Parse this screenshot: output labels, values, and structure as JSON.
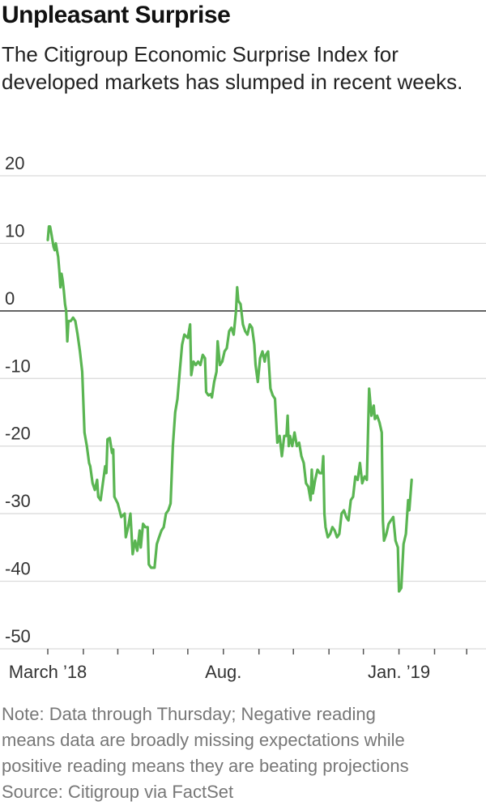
{
  "title": "Unpleasant Surprise",
  "subtitle": "The Citigroup Economic Surprise Index for developed markets has slumped in recent weeks.",
  "notes": [
    "Note: Data through Thursday; Negative reading",
    "means data are broadly missing expectations while",
    "positive reading means they are beating projections"
  ],
  "source": "Source: Citigroup via FactSet",
  "colors": {
    "line": "#5ab552",
    "grid": "#d9d9d9",
    "zero": "#333333",
    "axis_text": "#333333"
  },
  "chart_data": {
    "type": "line",
    "title": "Unpleasant Surprise",
    "ylim": [
      -50,
      20
    ],
    "yticks": [
      20,
      10,
      0,
      -10,
      -20,
      -30,
      -40,
      -50
    ],
    "ytick_labels": [
      "20",
      "10",
      "0",
      "-10",
      "-20",
      "-30",
      "-40",
      "-50"
    ],
    "grid": true,
    "zero_line": true,
    "x_axis": {
      "start": "2018-03-01",
      "end": "2019-03-15",
      "month_ticks": [
        "2018-03-01",
        "2018-04-01",
        "2018-05-01",
        "2018-06-01",
        "2018-07-01",
        "2018-08-01",
        "2018-09-01",
        "2018-10-01",
        "2018-11-01",
        "2018-12-01",
        "2019-01-01",
        "2019-02-01",
        "2019-03-01"
      ],
      "labels": [
        {
          "date": "2018-03-01",
          "text": "March ’18"
        },
        {
          "date": "2018-08-01",
          "text": "Aug."
        },
        {
          "date": "2019-01-01",
          "text": "Jan. ’19"
        }
      ]
    },
    "series": [
      {
        "points": [
          [
            "2018-03-01",
            10.5
          ],
          [
            "2018-03-02",
            12.5
          ],
          [
            "2018-03-03",
            12.5
          ],
          [
            "2018-03-04",
            11.5
          ],
          [
            "2018-03-05",
            10.5
          ],
          [
            "2018-03-06",
            9.5
          ],
          [
            "2018-03-07",
            9.0
          ],
          [
            "2018-03-08",
            10.0
          ],
          [
            "2018-03-09",
            9.0
          ],
          [
            "2018-03-10",
            8.0
          ],
          [
            "2018-03-11",
            6.0
          ],
          [
            "2018-03-12",
            3.5
          ],
          [
            "2018-03-13",
            5.5
          ],
          [
            "2018-03-14",
            4.5
          ],
          [
            "2018-03-15",
            3.0
          ],
          [
            "2018-03-16",
            1.0
          ],
          [
            "2018-03-17",
            0.0
          ],
          [
            "2018-03-18",
            -4.5
          ],
          [
            "2018-03-19",
            -1.5
          ],
          [
            "2018-03-21",
            -1.5
          ],
          [
            "2018-03-23",
            -1.0
          ],
          [
            "2018-03-25",
            -1.5
          ],
          [
            "2018-03-27",
            -3.5
          ],
          [
            "2018-03-29",
            -6.0
          ],
          [
            "2018-03-31",
            -9.0
          ],
          [
            "2018-04-02",
            -18.0
          ],
          [
            "2018-04-04",
            -20.0
          ],
          [
            "2018-04-06",
            -22.5
          ],
          [
            "2018-04-07",
            -23.0
          ],
          [
            "2018-04-09",
            -25.5
          ],
          [
            "2018-04-11",
            -26.5
          ],
          [
            "2018-04-13",
            -25.0
          ],
          [
            "2018-04-14",
            -27.5
          ],
          [
            "2018-04-16",
            -28.0
          ],
          [
            "2018-04-18",
            -25.5
          ],
          [
            "2018-04-20",
            -23.0
          ],
          [
            "2018-04-21",
            -24.0
          ],
          [
            "2018-04-22",
            -19.0
          ],
          [
            "2018-04-24",
            -18.8
          ],
          [
            "2018-04-26",
            -21.0
          ],
          [
            "2018-04-27",
            -20.5
          ],
          [
            "2018-04-28",
            -27.5
          ],
          [
            "2018-05-01",
            -28.5
          ],
          [
            "2018-05-04",
            -30.5
          ],
          [
            "2018-05-07",
            -30.0
          ],
          [
            "2018-05-08",
            -33.5
          ],
          [
            "2018-05-10",
            -32.0
          ],
          [
            "2018-05-12",
            -30.0
          ],
          [
            "2018-05-14",
            -36.0
          ],
          [
            "2018-05-16",
            -34.0
          ],
          [
            "2018-05-18",
            -35.5
          ],
          [
            "2018-05-20",
            -32.5
          ],
          [
            "2018-05-21",
            -35.0
          ],
          [
            "2018-05-23",
            -31.5
          ],
          [
            "2018-05-25",
            -32.0
          ],
          [
            "2018-05-27",
            -32.0
          ],
          [
            "2018-05-28",
            -37.5
          ],
          [
            "2018-05-30",
            -38.0
          ],
          [
            "2018-06-02",
            -38.0
          ],
          [
            "2018-06-04",
            -34.5
          ],
          [
            "2018-06-06",
            -33.5
          ],
          [
            "2018-06-08",
            -32.5
          ],
          [
            "2018-06-10",
            -32.0
          ],
          [
            "2018-06-12",
            -30.0
          ],
          [
            "2018-06-14",
            -29.5
          ],
          [
            "2018-06-16",
            -28.5
          ],
          [
            "2018-06-18",
            -20.0
          ],
          [
            "2018-06-20",
            -15.0
          ],
          [
            "2018-06-22",
            -13.0
          ],
          [
            "2018-06-24",
            -9.0
          ],
          [
            "2018-06-26",
            -5.0
          ],
          [
            "2018-06-28",
            -3.5
          ],
          [
            "2018-07-01",
            -4.0
          ],
          [
            "2018-07-03",
            -2.0
          ],
          [
            "2018-07-04",
            -9.5
          ],
          [
            "2018-07-06",
            -7.5
          ],
          [
            "2018-07-08",
            -8.0
          ],
          [
            "2018-07-10",
            -7.5
          ],
          [
            "2018-07-12",
            -8.0
          ],
          [
            "2018-07-14",
            -6.5
          ],
          [
            "2018-07-16",
            -7.0
          ],
          [
            "2018-07-17",
            -12.0
          ],
          [
            "2018-07-19",
            -12.5
          ],
          [
            "2018-07-21",
            -12.3
          ],
          [
            "2018-07-22",
            -12.8
          ],
          [
            "2018-07-24",
            -10.5
          ],
          [
            "2018-07-26",
            -9.0
          ],
          [
            "2018-07-27",
            -4.5
          ],
          [
            "2018-07-29",
            -8.0
          ],
          [
            "2018-07-31",
            -7.5
          ],
          [
            "2018-08-02",
            -6.0
          ],
          [
            "2018-08-04",
            -5.5
          ],
          [
            "2018-08-06",
            -3.0
          ],
          [
            "2018-08-08",
            -2.5
          ],
          [
            "2018-08-10",
            -3.5
          ],
          [
            "2018-08-12",
            0.0
          ],
          [
            "2018-08-13",
            3.5
          ],
          [
            "2018-08-14",
            1.5
          ],
          [
            "2018-08-16",
            1.0
          ],
          [
            "2018-08-18",
            -2.0
          ],
          [
            "2018-08-20",
            -3.0
          ],
          [
            "2018-08-22",
            -3.5
          ],
          [
            "2018-08-24",
            -2.0
          ],
          [
            "2018-08-26",
            -2.5
          ],
          [
            "2018-08-28",
            -5.0
          ],
          [
            "2018-08-29",
            -8.0
          ],
          [
            "2018-08-31",
            -10.5
          ],
          [
            "2018-09-02",
            -7.0
          ],
          [
            "2018-09-04",
            -6.0
          ],
          [
            "2018-09-06",
            -7.5
          ],
          [
            "2018-09-07",
            -6.5
          ],
          [
            "2018-09-09",
            -6.0
          ],
          [
            "2018-09-11",
            -11.5
          ],
          [
            "2018-09-13",
            -12.5
          ],
          [
            "2018-09-15",
            -13.0
          ],
          [
            "2018-09-17",
            -19.5
          ],
          [
            "2018-09-19",
            -18.5
          ],
          [
            "2018-09-21",
            -21.5
          ],
          [
            "2018-09-23",
            -18.5
          ],
          [
            "2018-09-25",
            -18.5
          ],
          [
            "2018-09-26",
            -15.5
          ],
          [
            "2018-09-27",
            -20.0
          ],
          [
            "2018-09-28",
            -18.5
          ],
          [
            "2018-09-30",
            -20.0
          ],
          [
            "2018-10-02",
            -18.0
          ],
          [
            "2018-10-04",
            -20.0
          ],
          [
            "2018-10-06",
            -19.5
          ],
          [
            "2018-10-08",
            -21.5
          ],
          [
            "2018-10-10",
            -22.5
          ],
          [
            "2018-10-12",
            -25.5
          ],
          [
            "2018-10-14",
            -26.0
          ],
          [
            "2018-10-16",
            -28.0
          ],
          [
            "2018-10-17",
            -23.5
          ],
          [
            "2018-10-18",
            -27.0
          ],
          [
            "2018-10-20",
            -25.0
          ],
          [
            "2018-10-22",
            -23.5
          ],
          [
            "2018-10-24",
            -24.0
          ],
          [
            "2018-10-26",
            -24.0
          ],
          [
            "2018-10-27",
            -21.5
          ],
          [
            "2018-10-28",
            -30.0
          ],
          [
            "2018-10-29",
            -32.0
          ],
          [
            "2018-10-31",
            -33.5
          ],
          [
            "2018-11-02",
            -33.0
          ],
          [
            "2018-11-04",
            -32.0
          ],
          [
            "2018-11-06",
            -32.5
          ],
          [
            "2018-11-08",
            -33.5
          ],
          [
            "2018-11-10",
            -33.0
          ],
          [
            "2018-11-12",
            -30.0
          ],
          [
            "2018-11-14",
            -29.5
          ],
          [
            "2018-11-16",
            -30.5
          ],
          [
            "2018-11-18",
            -31.0
          ],
          [
            "2018-11-20",
            -28.0
          ],
          [
            "2018-11-22",
            -27.5
          ],
          [
            "2018-11-24",
            -24.5
          ],
          [
            "2018-11-26",
            -25.0
          ],
          [
            "2018-11-28",
            -22.5
          ],
          [
            "2018-11-30",
            -25.5
          ],
          [
            "2018-12-02",
            -24.5
          ],
          [
            "2018-12-04",
            -25.0
          ],
          [
            "2018-12-06",
            -11.5
          ],
          [
            "2018-12-08",
            -15.5
          ],
          [
            "2018-12-10",
            -14.0
          ],
          [
            "2018-12-11",
            -16.0
          ],
          [
            "2018-12-13",
            -15.5
          ],
          [
            "2018-12-15",
            -16.5
          ],
          [
            "2018-12-17",
            -18.0
          ],
          [
            "2018-12-18",
            -31.0
          ],
          [
            "2018-12-19",
            -34.0
          ],
          [
            "2018-12-21",
            -33.0
          ],
          [
            "2018-12-23",
            -31.5
          ],
          [
            "2018-12-25",
            -31.0
          ],
          [
            "2018-12-27",
            -30.5
          ],
          [
            "2018-12-29",
            -34.0
          ],
          [
            "2018-12-31",
            -35.0
          ],
          [
            "2019-01-01",
            -41.5
          ],
          [
            "2019-01-03",
            -41.0
          ],
          [
            "2019-01-05",
            -34.5
          ],
          [
            "2019-01-07",
            -33.0
          ],
          [
            "2019-01-09",
            -28.0
          ],
          [
            "2019-01-10",
            -29.5
          ],
          [
            "2019-01-12",
            -25.0
          ]
        ]
      }
    ]
  }
}
